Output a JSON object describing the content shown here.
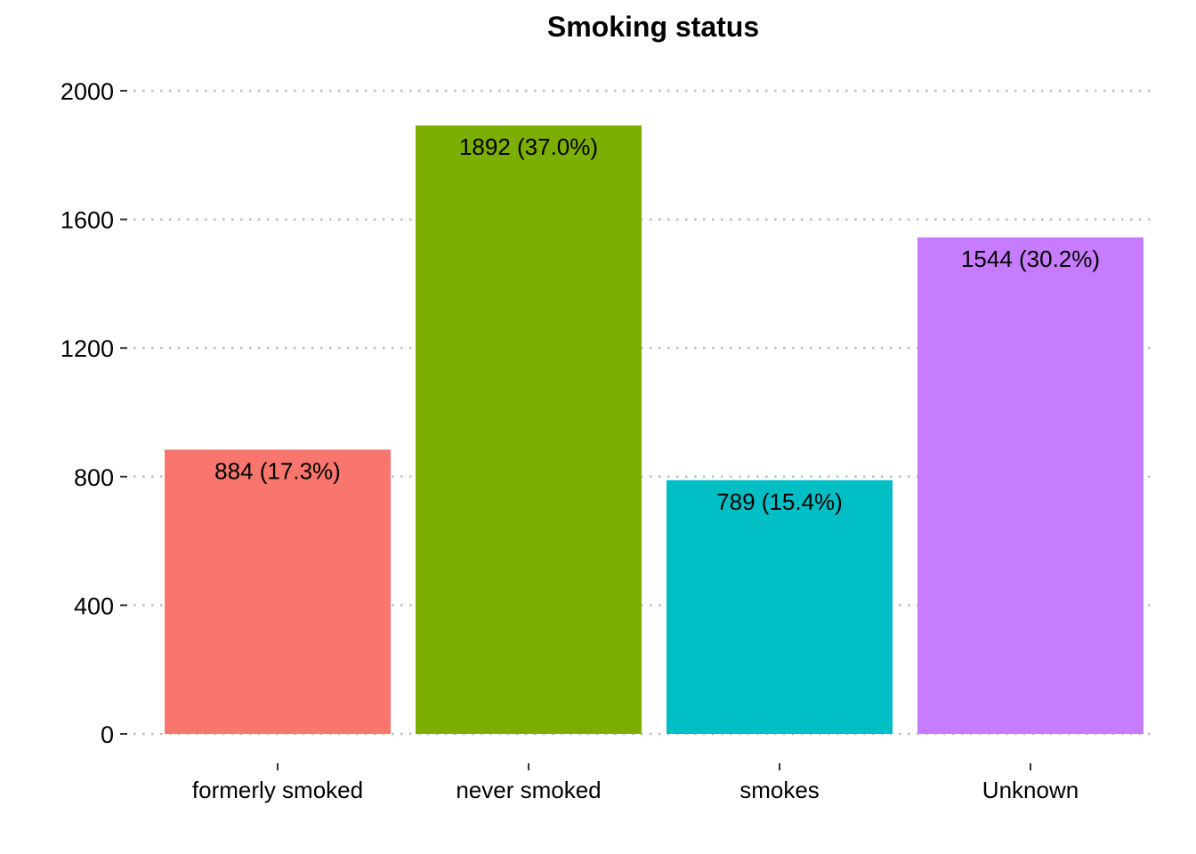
{
  "chart_data": {
    "type": "bar",
    "title": "Smoking status",
    "xlabel": "",
    "ylabel": "",
    "categories": [
      "formerly smoked",
      "never smoked",
      "smokes",
      "Unknown"
    ],
    "values": [
      884,
      1892,
      789,
      1544
    ],
    "data_labels": [
      "884 (17.3%)",
      "1892 (37.0%)",
      "789 (15.4%)",
      "1544 (30.2%)"
    ],
    "colors": [
      "#F8766D",
      "#7CAE00",
      "#00BFC4",
      "#C77CFF"
    ],
    "yticks": [
      0,
      400,
      800,
      1200,
      1600,
      2000
    ],
    "ylim": [
      0,
      2000
    ],
    "grid": "horizontal dotted",
    "legend": "none"
  }
}
